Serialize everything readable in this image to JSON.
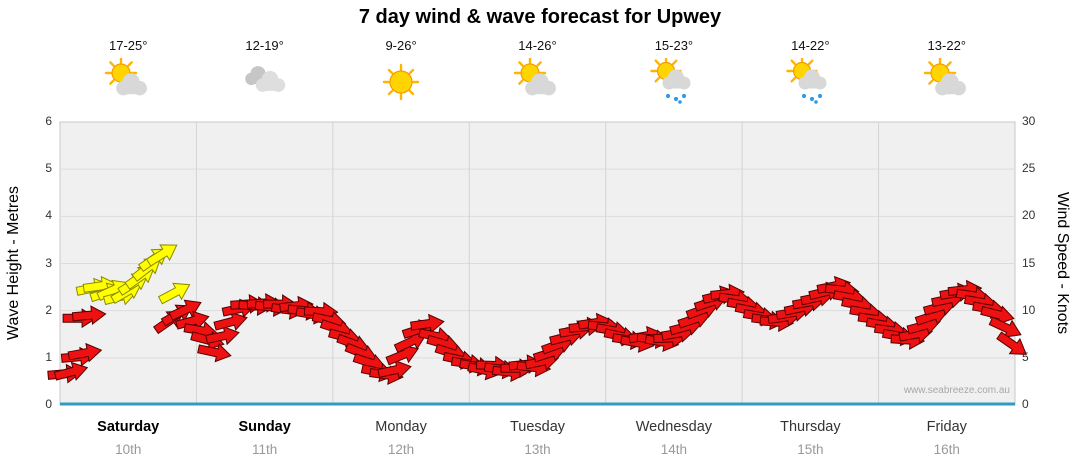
{
  "title": "7 day wind & wave forecast for Upwey",
  "watermark": "www.seabreeze.com.au",
  "y_left": {
    "label": "Wave Height - Metres",
    "ticks": [
      0,
      1,
      2,
      3,
      4,
      5,
      6
    ],
    "min": 0,
    "max": 6
  },
  "y_right": {
    "label": "Wind Speed - Knots",
    "ticks": [
      0,
      5,
      10,
      15,
      20,
      25,
      30
    ],
    "min": 0,
    "max": 30
  },
  "days": [
    {
      "name": "Saturday",
      "date": "10th",
      "temp": "17-25°",
      "icon": "sun-cloud",
      "bold": true
    },
    {
      "name": "Sunday",
      "date": "11th",
      "temp": "12-19°",
      "icon": "cloudy",
      "bold": true
    },
    {
      "name": "Monday",
      "date": "12th",
      "temp": "9-26°",
      "icon": "sunny",
      "bold": false
    },
    {
      "name": "Tuesday",
      "date": "13th",
      "temp": "14-26°",
      "icon": "sun-cloud",
      "bold": false
    },
    {
      "name": "Wednesday",
      "date": "14th",
      "temp": "15-23°",
      "icon": "sun-cloud-rain",
      "bold": false
    },
    {
      "name": "Thursday",
      "date": "15th",
      "temp": "14-22°",
      "icon": "sun-cloud-rain",
      "bold": false
    },
    {
      "name": "Friday",
      "date": "16th",
      "temp": "13-22°",
      "icon": "sun-cloud",
      "bold": false
    }
  ],
  "chart_data": {
    "type": "wind-arrow-series",
    "title": "7 day wind & wave forecast for Upwey",
    "x_unit": "days (0 = start of Saturday 10th, 7 = end of Friday 16th)",
    "y_left_label": "Wave Height - Metres",
    "y_left_range": [
      0,
      6
    ],
    "y_right_label": "Wind Speed - Knots",
    "y_right_range": [
      0,
      30
    ],
    "grid": true,
    "colors": {
      "normal_arrow": "#ee1111",
      "highlight_arrow": "#ffff00",
      "baseline": "#2e9bc0"
    },
    "point_format": [
      "t_days",
      "wind_knots",
      "direction_deg (0 = east/right, negative = tilted up)",
      "color r|y"
    ],
    "points": [
      [
        0.03,
        3.3,
        -5,
        "r"
      ],
      [
        0.08,
        3.5,
        -15,
        "r"
      ],
      [
        0.13,
        5.1,
        -5,
        "r"
      ],
      [
        0.18,
        5.5,
        -10,
        "r"
      ],
      [
        0.14,
        9.2,
        0,
        "r"
      ],
      [
        0.21,
        9.5,
        -5,
        "r"
      ],
      [
        0.24,
        12.4,
        -12,
        "y"
      ],
      [
        0.29,
        12.6,
        -8,
        "y"
      ],
      [
        0.34,
        11.9,
        -18,
        "y"
      ],
      [
        0.39,
        12.2,
        -25,
        "y"
      ],
      [
        0.44,
        11.5,
        -15,
        "y"
      ],
      [
        0.49,
        12.0,
        -30,
        "y"
      ],
      [
        0.54,
        12.9,
        -32,
        "y"
      ],
      [
        0.59,
        13.6,
        -35,
        "y"
      ],
      [
        0.64,
        14.5,
        -38,
        "y"
      ],
      [
        0.69,
        15.5,
        -35,
        "y"
      ],
      [
        0.75,
        16.0,
        -32,
        "y"
      ],
      [
        0.84,
        11.9,
        -28,
        "y"
      ],
      [
        0.8,
        8.9,
        -35,
        "r"
      ],
      [
        0.86,
        9.6,
        -30,
        "r"
      ],
      [
        0.92,
        10.1,
        -25,
        "r"
      ],
      [
        0.97,
        8.9,
        -15,
        "r"
      ],
      [
        1.03,
        7.9,
        10,
        "r"
      ],
      [
        1.08,
        6.9,
        15,
        "r"
      ],
      [
        1.13,
        5.6,
        12,
        "r"
      ],
      [
        1.19,
        7.3,
        -12,
        "r"
      ],
      [
        1.25,
        8.8,
        -15,
        "r"
      ],
      [
        1.31,
        10.2,
        -12,
        "r"
      ],
      [
        1.37,
        10.7,
        -4,
        "r"
      ],
      [
        1.43,
        10.5,
        4,
        "r"
      ],
      [
        1.49,
        10.8,
        -4,
        "r"
      ],
      [
        1.55,
        10.4,
        6,
        "r"
      ],
      [
        1.61,
        10.7,
        0,
        "r"
      ],
      [
        1.67,
        10.1,
        8,
        "r"
      ],
      [
        1.73,
        10.5,
        -6,
        "r"
      ],
      [
        1.79,
        10.0,
        6,
        "r"
      ],
      [
        1.85,
        9.6,
        10,
        "r"
      ],
      [
        1.91,
        9.9,
        2,
        "r"
      ],
      [
        1.97,
        9.0,
        12,
        "r"
      ],
      [
        2.03,
        8.1,
        18,
        "r"
      ],
      [
        2.09,
        7.2,
        15,
        "r"
      ],
      [
        2.15,
        6.5,
        20,
        "r"
      ],
      [
        2.21,
        5.5,
        22,
        "r"
      ],
      [
        2.27,
        4.5,
        18,
        "r"
      ],
      [
        2.33,
        3.5,
        12,
        "r"
      ],
      [
        2.39,
        3.2,
        8,
        "r"
      ],
      [
        2.45,
        3.7,
        -12,
        "r"
      ],
      [
        2.51,
        5.3,
        -22,
        "r"
      ],
      [
        2.57,
        6.7,
        -25,
        "r"
      ],
      [
        2.63,
        8.0,
        -18,
        "r"
      ],
      [
        2.69,
        8.6,
        -8,
        "r"
      ],
      [
        2.75,
        7.3,
        12,
        "r"
      ],
      [
        2.81,
        6.5,
        16,
        "r"
      ],
      [
        2.87,
        5.5,
        18,
        "r"
      ],
      [
        2.93,
        4.8,
        12,
        "r"
      ],
      [
        2.99,
        4.4,
        8,
        "r"
      ],
      [
        3.05,
        4.1,
        10,
        "r"
      ],
      [
        3.11,
        3.7,
        12,
        "r"
      ],
      [
        3.17,
        4.2,
        2,
        "r"
      ],
      [
        3.23,
        3.8,
        8,
        "r"
      ],
      [
        3.29,
        3.5,
        6,
        "r"
      ],
      [
        3.35,
        3.9,
        0,
        "r"
      ],
      [
        3.41,
        4.3,
        -6,
        "r"
      ],
      [
        3.47,
        4.0,
        6,
        "r"
      ],
      [
        3.53,
        4.6,
        -12,
        "r"
      ],
      [
        3.59,
        5.5,
        -18,
        "r"
      ],
      [
        3.65,
        6.4,
        -20,
        "r"
      ],
      [
        3.71,
        7.2,
        -14,
        "r"
      ],
      [
        3.78,
        7.9,
        -10,
        "r"
      ],
      [
        3.85,
        8.3,
        -6,
        "r"
      ],
      [
        3.92,
        8.7,
        -8,
        "r"
      ],
      [
        3.99,
        8.3,
        6,
        "r"
      ],
      [
        4.05,
        7.9,
        10,
        "r"
      ],
      [
        4.11,
        7.3,
        12,
        "r"
      ],
      [
        4.17,
        6.9,
        8,
        "r"
      ],
      [
        4.23,
        6.6,
        10,
        "r"
      ],
      [
        4.29,
        7.3,
        -10,
        "r"
      ],
      [
        4.35,
        7.0,
        6,
        "r"
      ],
      [
        4.41,
        6.7,
        10,
        "r"
      ],
      [
        4.47,
        7.1,
        -2,
        "r"
      ],
      [
        4.53,
        7.6,
        -10,
        "r"
      ],
      [
        4.59,
        8.3,
        -15,
        "r"
      ],
      [
        4.65,
        9.1,
        -18,
        "r"
      ],
      [
        4.71,
        10.1,
        -20,
        "r"
      ],
      [
        4.77,
        10.9,
        -18,
        "r"
      ],
      [
        4.83,
        11.6,
        -14,
        "r"
      ],
      [
        4.89,
        11.8,
        -6,
        "r"
      ],
      [
        4.95,
        11.2,
        8,
        "r"
      ],
      [
        5.01,
        10.6,
        10,
        "r"
      ],
      [
        5.07,
        10.0,
        12,
        "r"
      ],
      [
        5.13,
        9.4,
        10,
        "r"
      ],
      [
        5.19,
        9.0,
        8,
        "r"
      ],
      [
        5.25,
        8.8,
        4,
        "r"
      ],
      [
        5.31,
        9.3,
        -8,
        "r"
      ],
      [
        5.37,
        9.8,
        -10,
        "r"
      ],
      [
        5.43,
        10.3,
        -12,
        "r"
      ],
      [
        5.49,
        10.9,
        -10,
        "r"
      ],
      [
        5.55,
        11.4,
        -12,
        "r"
      ],
      [
        5.61,
        12.0,
        -14,
        "r"
      ],
      [
        5.67,
        12.6,
        -12,
        "r"
      ],
      [
        5.73,
        12.2,
        6,
        "r"
      ],
      [
        5.79,
        11.4,
        10,
        "r"
      ],
      [
        5.85,
        10.6,
        12,
        "r"
      ],
      [
        5.91,
        9.8,
        10,
        "r"
      ],
      [
        5.97,
        9.1,
        8,
        "r"
      ],
      [
        6.03,
        8.5,
        10,
        "r"
      ],
      [
        6.09,
        7.9,
        8,
        "r"
      ],
      [
        6.15,
        7.3,
        10,
        "r"
      ],
      [
        6.21,
        6.9,
        4,
        "r"
      ],
      [
        6.27,
        7.5,
        -10,
        "r"
      ],
      [
        6.33,
        8.4,
        -15,
        "r"
      ],
      [
        6.39,
        9.4,
        -18,
        "r"
      ],
      [
        6.45,
        10.4,
        -15,
        "r"
      ],
      [
        6.51,
        11.2,
        -12,
        "r"
      ],
      [
        6.57,
        11.9,
        -10,
        "r"
      ],
      [
        6.63,
        12.2,
        -6,
        "r"
      ],
      [
        6.69,
        11.6,
        8,
        "r"
      ],
      [
        6.75,
        10.9,
        10,
        "r"
      ],
      [
        6.81,
        10.2,
        10,
        "r"
      ],
      [
        6.87,
        9.6,
        14,
        "r"
      ],
      [
        6.93,
        8.2,
        25,
        "r"
      ],
      [
        6.98,
        6.4,
        35,
        "r"
      ]
    ]
  }
}
